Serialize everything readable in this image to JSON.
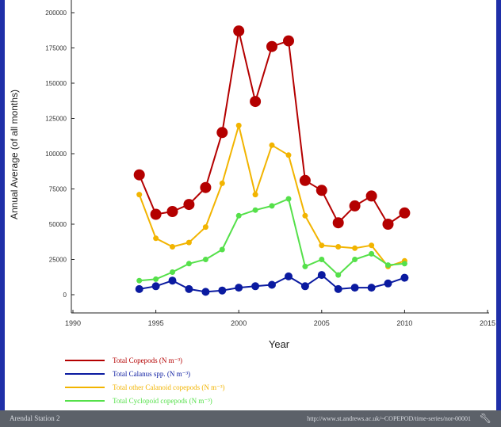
{
  "chart_data": {
    "type": "line",
    "title": "",
    "xlabel": "Year",
    "ylabel": "Annual Average (of all months)",
    "xlim": [
      1990,
      2015
    ],
    "ylim": [
      0,
      200000
    ],
    "xticks": [
      1990,
      1995,
      2000,
      2005,
      2010,
      2015
    ],
    "yticks": [
      0,
      25000,
      50000,
      75000,
      100000,
      125000,
      150000,
      175000,
      200000
    ],
    "grid": false,
    "legend_position": "bottom-left",
    "x": [
      1994,
      1995,
      1996,
      1997,
      1998,
      1999,
      2000,
      2001,
      2002,
      2003,
      2004,
      2005,
      2006,
      2007,
      2008,
      2009,
      2010
    ],
    "series": [
      {
        "name": "Total Copepods (N m⁻³)",
        "color": "#b40000",
        "marker": "large",
        "values": [
          85000,
          57000,
          59000,
          64000,
          76000,
          115000,
          187000,
          137000,
          176000,
          180000,
          81000,
          74000,
          51000,
          63000,
          70000,
          50000,
          58000
        ]
      },
      {
        "name": "Total Calanus spp. (N m⁻³)",
        "color": "#0a1aa0",
        "marker": "medium",
        "values": [
          4000,
          6000,
          10000,
          4000,
          2000,
          3000,
          5000,
          6000,
          7000,
          13000,
          6000,
          14000,
          4000,
          5000,
          5000,
          8000,
          12000
        ]
      },
      {
        "name": "Total other Calanoid copepods (N m⁻³)",
        "color": "#f2b400",
        "marker": "small",
        "values": [
          71000,
          40000,
          34000,
          37000,
          48000,
          79000,
          120000,
          71000,
          106000,
          99000,
          56000,
          35000,
          34000,
          33000,
          35000,
          20000,
          24000
        ]
      },
      {
        "name": "Total Cyclopoid copepods (N m⁻³)",
        "color": "#55e04a",
        "marker": "small",
        "values": [
          10000,
          11000,
          16000,
          22000,
          25000,
          32000,
          56000,
          60000,
          63000,
          68000,
          20000,
          25000,
          14000,
          25000,
          29000,
          21000,
          22000
        ]
      }
    ]
  },
  "footer": {
    "station": "Arendal Station 2",
    "url": "http://www.st.andrews.ac.uk/~COPEPOD/time-series/nor-00001",
    "tool_icon": "wrench-icon"
  }
}
